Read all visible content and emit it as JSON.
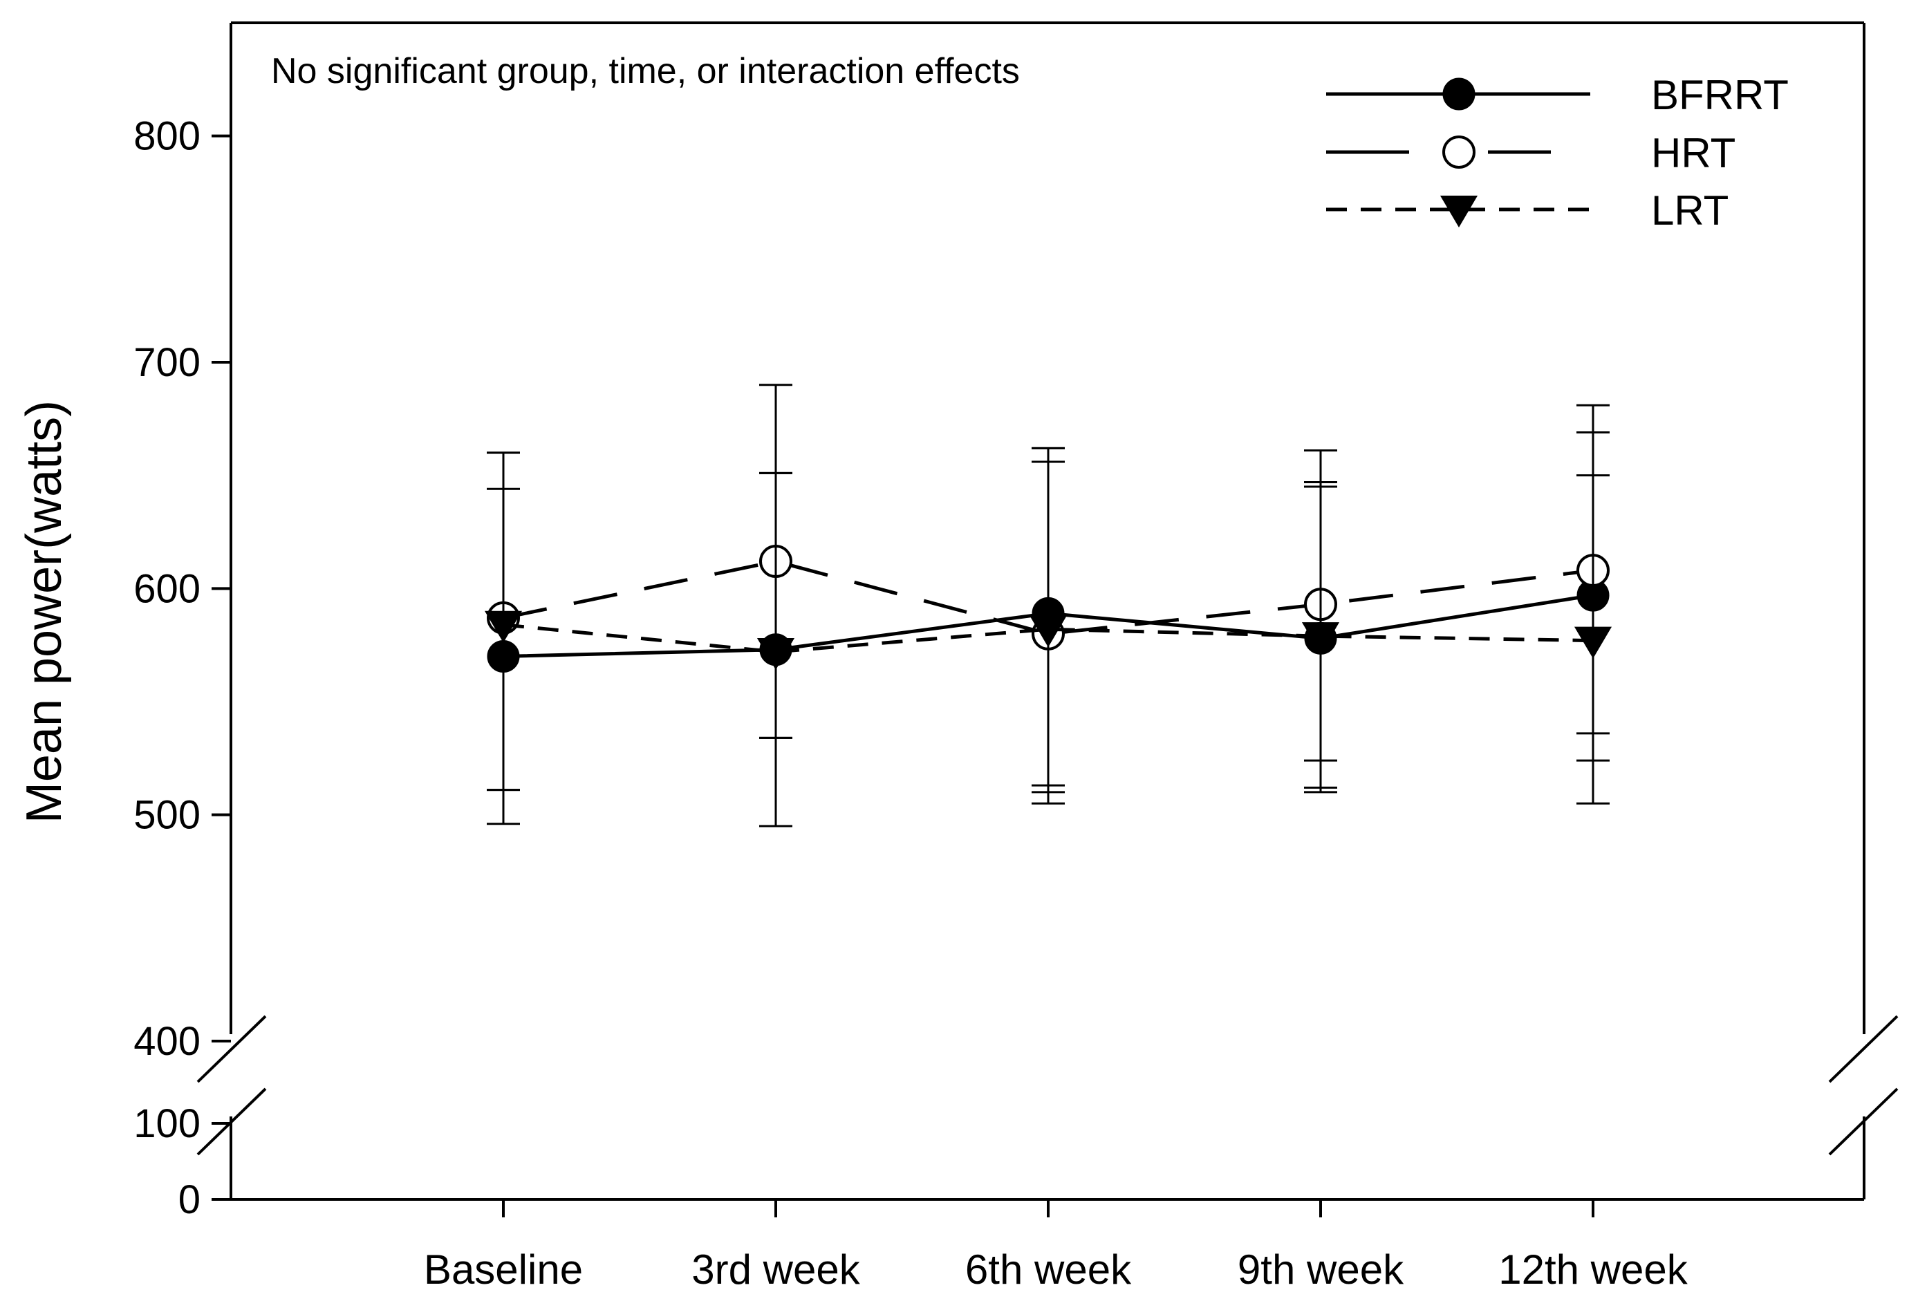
{
  "chart_data": {
    "type": "line",
    "title": "",
    "annotation": "No significant group, time, or interaction effects",
    "xlabel": "",
    "ylabel": "Mean power(watts)",
    "categories": [
      "Baseline",
      "3rd week",
      "6th week",
      "9th week",
      "12th week"
    ],
    "y_axis": {
      "broken": true,
      "lower_segment": {
        "range": [
          0,
          100
        ],
        "ticks": [
          0,
          100
        ]
      },
      "upper_segment": {
        "range": [
          400,
          850
        ],
        "ticks": [
          400,
          500,
          600,
          700,
          800
        ]
      }
    },
    "grid": false,
    "legend_position": "top-right",
    "series": [
      {
        "name": "BFRRT",
        "line_style": "solid",
        "marker": "filled-circle",
        "values": [
          570,
          573,
          589,
          578,
          597
        ],
        "error_low": [
          511,
          534,
          513,
          512,
          505
        ],
        "error_high": [
          660,
          690,
          662,
          661,
          681
        ]
      },
      {
        "name": "HRT",
        "line_style": "long-dash",
        "marker": "open-circle",
        "values": [
          587,
          612,
          580,
          593,
          608
        ],
        "error_low": [
          496,
          495,
          505,
          510,
          524
        ],
        "error_high": [
          644,
          651,
          656,
          647,
          650
        ]
      },
      {
        "name": "LRT",
        "line_style": "short-dash",
        "marker": "filled-triangle-down",
        "values": [
          584,
          572,
          582,
          579,
          577
        ],
        "error_low": [
          511,
          534,
          510,
          524,
          536
        ],
        "error_high": [
          660,
          651,
          662,
          645,
          669
        ]
      }
    ],
    "colors": {
      "line": "#000000",
      "background": "#ffffff"
    }
  }
}
